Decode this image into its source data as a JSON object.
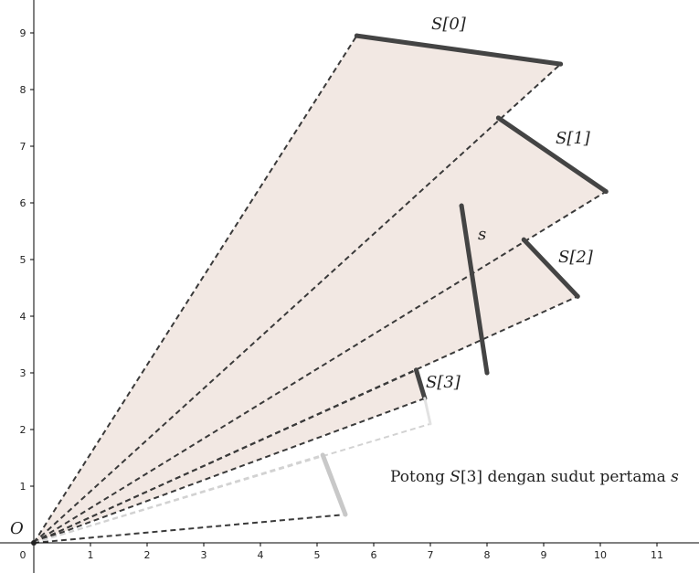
{
  "diagram": {
    "origin_label": "O",
    "x_ticks": [
      "0",
      "1",
      "2",
      "3",
      "4",
      "5",
      "6",
      "7",
      "8",
      "9",
      "10",
      "11"
    ],
    "y_ticks": [
      "1",
      "2",
      "3",
      "4",
      "5",
      "6",
      "7",
      "8",
      "9"
    ],
    "colors": {
      "wedge_fill": "#f2e8e3",
      "segment_dark": "#444444",
      "segment_light": "#c8c8c8",
      "dash_dark": "#3a3a3a",
      "dash_light": "#d2d2d2",
      "axis": "#000000"
    },
    "segments": [
      {
        "name": "S[0]",
        "p1": [
          5.7,
          8.95
        ],
        "p2": [
          9.3,
          8.45
        ],
        "style": "dark"
      },
      {
        "name": "S[1]",
        "p1": [
          8.2,
          7.5
        ],
        "p2": [
          10.1,
          6.2
        ],
        "style": "dark"
      },
      {
        "name": "S[2]",
        "p1": [
          8.65,
          5.35
        ],
        "p2": [
          9.6,
          4.35
        ],
        "style": "dark"
      },
      {
        "name": "S[3]",
        "p1": [
          6.75,
          3.05
        ],
        "p2": [
          6.9,
          2.55
        ],
        "style": "dark"
      },
      {
        "name": "s",
        "p1": [
          7.55,
          5.95
        ],
        "p2": [
          8.0,
          3.0
        ],
        "style": "dark"
      },
      {
        "name": "",
        "p1": [
          5.1,
          1.55
        ],
        "p2": [
          5.5,
          0.5
        ],
        "style": "light"
      },
      {
        "name": "",
        "p1": [
          7.0,
          2.1
        ],
        "p2": [
          6.9,
          2.55
        ],
        "style": "light_thin"
      }
    ],
    "wedges": [
      {
        "a": [
          5.7,
          8.95
        ],
        "b": [
          9.3,
          8.45
        ]
      },
      {
        "a": [
          8.2,
          7.5
        ],
        "b": [
          10.1,
          6.2
        ]
      },
      {
        "a": [
          8.65,
          5.35
        ],
        "b": [
          9.6,
          4.35
        ]
      },
      {
        "a": [
          6.75,
          3.05
        ],
        "b": [
          6.9,
          2.55
        ]
      }
    ],
    "rays": [
      {
        "to": [
          5.7,
          8.95
        ],
        "style": "dark"
      },
      {
        "to": [
          9.3,
          8.45
        ],
        "style": "dark"
      },
      {
        "to": [
          10.1,
          6.2
        ],
        "style": "dark"
      },
      {
        "to": [
          9.6,
          4.35
        ],
        "style": "dark"
      },
      {
        "to": [
          6.75,
          3.05
        ],
        "style": "dark"
      },
      {
        "to": [
          6.9,
          2.55
        ],
        "style": "dark"
      },
      {
        "to": [
          7.0,
          2.1
        ],
        "style": "light"
      },
      {
        "to": [
          5.1,
          1.55
        ],
        "style": "light"
      },
      {
        "to": [
          5.5,
          0.5
        ],
        "style": "dark"
      }
    ],
    "labels": {
      "s0": "S[0]",
      "s1": "S[1]",
      "s2": "S[2]",
      "s3": "S[3]",
      "s": "s"
    },
    "caption_parts": [
      "Potong ",
      "S",
      "[3] dengan sudut pertama ",
      "s"
    ]
  }
}
